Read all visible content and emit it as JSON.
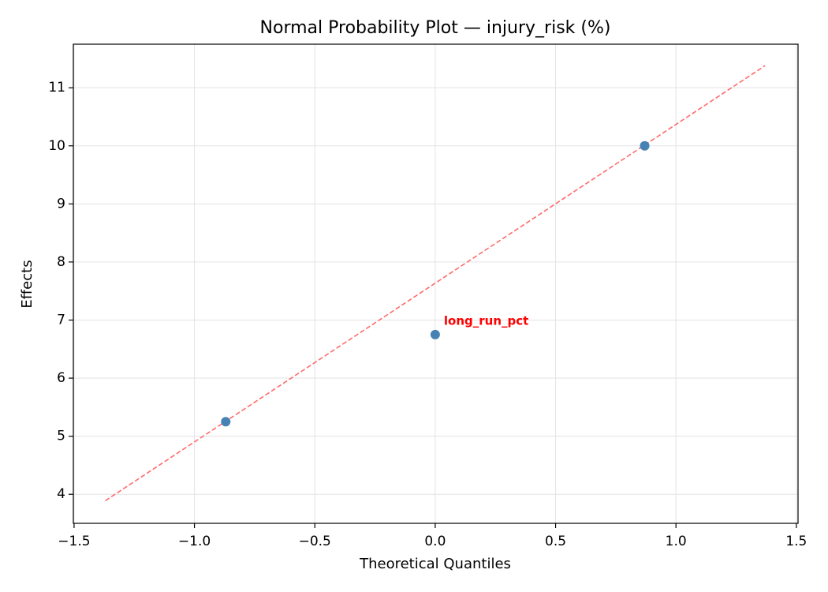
{
  "chart_data": {
    "type": "scatter",
    "title": "Normal Probability Plot — injury_risk (%)",
    "x_label": "Theoretical Quantiles",
    "y_label": "Effects",
    "xlim": [
      -1.503,
      1.507
    ],
    "ylim": [
      3.5,
      11.75
    ],
    "xticks": [
      {
        "value": -1.5,
        "label": "−1.5"
      },
      {
        "value": -1.0,
        "label": "−1.0"
      },
      {
        "value": -0.5,
        "label": "−0.5"
      },
      {
        "value": 0,
        "label": "0.0"
      },
      {
        "value": 0.5,
        "label": "0.5"
      },
      {
        "value": 1.0,
        "label": "1.0"
      },
      {
        "value": 1.5,
        "label": "1.5"
      }
    ],
    "yticks": [
      4,
      5,
      6,
      7,
      8,
      9,
      10,
      11
    ],
    "grid": true,
    "series": [
      {
        "x": [
          -0.87,
          0,
          0.87
        ],
        "values": [
          5.25,
          6.75,
          10.0
        ],
        "color": "#4682b4",
        "labels": [
          null,
          "long_run_pct",
          null
        ],
        "label_color": "#ff0000"
      }
    ],
    "reference_line": {
      "x": [
        -1.37,
        1.37
      ],
      "values": [
        3.89,
        11.38
      ],
      "color": "#ff6b6b",
      "dashed": true
    }
  }
}
